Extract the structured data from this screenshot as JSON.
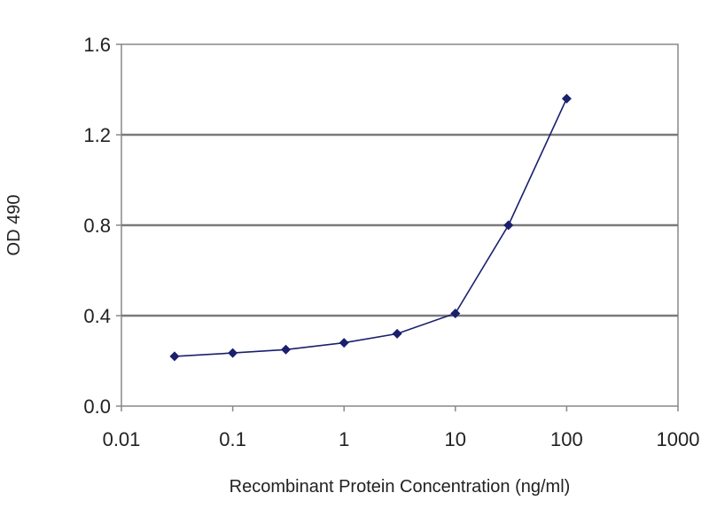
{
  "chart_data": {
    "type": "line",
    "xlabel": "Recombinant Protein Concentration (ng/ml)",
    "ylabel": "OD 490",
    "x_scale": "log",
    "xlim": [
      0.01,
      1000
    ],
    "ylim": [
      0.0,
      1.6
    ],
    "x_ticks": [
      0.01,
      0.1,
      1,
      10,
      100,
      1000
    ],
    "x_tick_labels": [
      "0.01",
      "0.1",
      "1",
      "10",
      "100",
      "1000"
    ],
    "y_ticks": [
      0.0,
      0.4,
      0.8,
      1.2,
      1.6
    ],
    "y_tick_labels": [
      "0.0",
      "0.4",
      "0.8",
      "1.2",
      "1.6"
    ],
    "grid": "horizontal",
    "legend": "none",
    "series": [
      {
        "color": "#1a1f6e",
        "marker": "diamond",
        "points": [
          {
            "x": 0.03,
            "y": 0.22
          },
          {
            "x": 0.1,
            "y": 0.235
          },
          {
            "x": 0.3,
            "y": 0.25
          },
          {
            "x": 1,
            "y": 0.28
          },
          {
            "x": 3,
            "y": 0.32
          },
          {
            "x": 10,
            "y": 0.41
          },
          {
            "x": 30,
            "y": 0.8
          },
          {
            "x": 100,
            "y": 1.36
          }
        ]
      }
    ]
  }
}
